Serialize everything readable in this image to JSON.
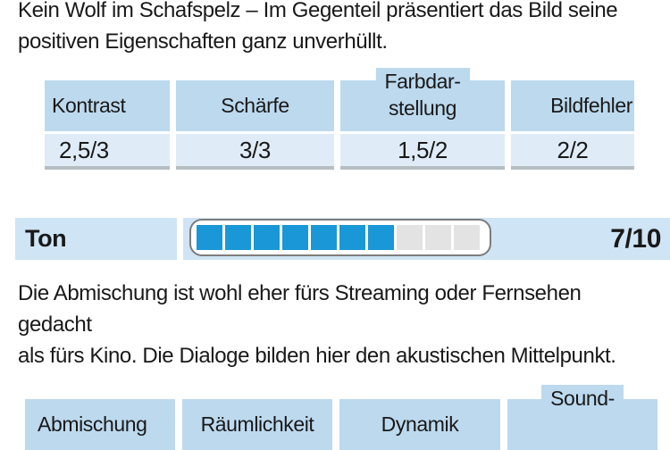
{
  "picture": {
    "comment": "Kein Wolf im Schafspelz – Im Gegenteil präsentiert das Bild seine\npositiven Eigenschaften ganz unverhüllt.",
    "table": {
      "columns": [
        {
          "label": "Kontrast",
          "value": "2,5/3"
        },
        {
          "label": "Farbdarstellung",
          "lines": [
            "Schärfe"
          ],
          "value": "3/3"
        },
        {
          "label": "Farbdarstellung",
          "lines": [
            "Farbdar-",
            "stellung"
          ],
          "value": "1,5/2"
        },
        {
          "label": "Bildfehler",
          "value": "2/2"
        }
      ]
    }
  },
  "sound": {
    "label": "Ton",
    "score": "7/10",
    "rating": {
      "filled": 7,
      "total": 10
    },
    "comment": "Die Abmischung ist wohl eher fürs Streaming oder Fernsehen gedacht\nals fürs Kino. Die Dialoge bilden hier den akustischen Mittelpunkt.",
    "table": {
      "columns": [
        {
          "label": "Abmischung"
        },
        {
          "label": "Räumlichkeit"
        },
        {
          "label": "Dynamik"
        },
        {
          "label": "Sound-",
          "lines": [
            "Sound-"
          ]
        }
      ]
    }
  },
  "colors": {
    "header_cell": "#bcd9ee",
    "value_cell": "#dfecf8",
    "ton_band": "#cfe4f5",
    "bar_filled": "#1997d6",
    "bar_empty": "#e3e3e3",
    "bar_border": "#7d7d7d",
    "underline_gray": "#b6bdc3",
    "text": "#191919"
  }
}
